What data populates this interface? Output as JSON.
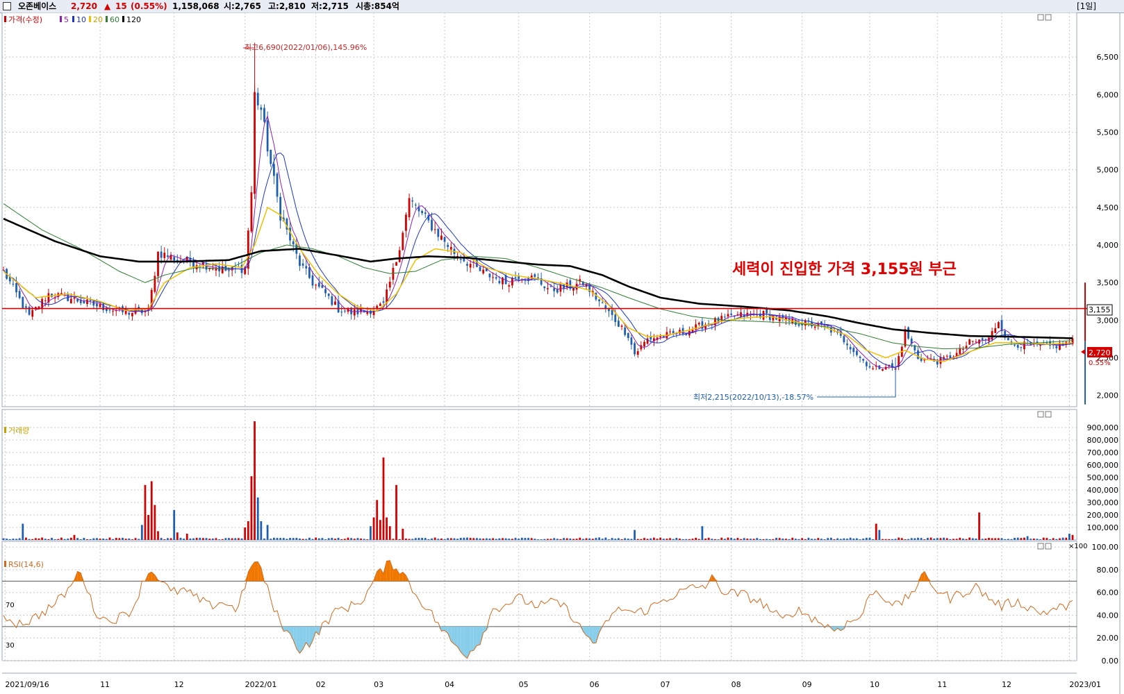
{
  "header": {
    "stock_name": "오존베이스",
    "price": "2,720",
    "change_arrow": "▲",
    "change": "15",
    "change_pct": "(0.55%)",
    "volume": "1,158,068",
    "open": "시:2,765",
    "high": "고:2,810",
    "low": "저:2,715",
    "mktcap": "시총:854억",
    "period": "[1일]"
  },
  "colors": {
    "up": "#d40000",
    "down": "#1e5fb4",
    "ma5": "#8e1fb0",
    "ma10": "#1a35c8",
    "ma20": "#f0c000",
    "ma60": "#2e7d32",
    "ma120": "#000000",
    "hline": "#d40000",
    "rsi": "#d2691e"
  },
  "chart_data": [
    {
      "type": "line",
      "subtype": "candlestick",
      "legend": [
        "가격(수정)",
        "5",
        "10",
        "20",
        "60",
        "120"
      ],
      "title_annotation": "세력이 진입한 가격 3,155원 부근",
      "high_annotation": "최고6,690(2022/01/06),145.96%",
      "low_annotation": "최저2,215(2022/10/13),-18.57%",
      "hline_value": 3155,
      "hline_label": "3,155",
      "last_price_label": "2,720",
      "last_pct_label": "0.55%",
      "y_ticks": [
        2000,
        2500,
        3000,
        3500,
        4000,
        4500,
        5000,
        5500,
        6000,
        6500
      ],
      "y_tick_labels": [
        "2,000",
        "2,500",
        "3,000",
        "3,500",
        "4,000",
        "4,500",
        "5,000",
        "5,500",
        "6,000",
        "6,500"
      ],
      "ylim": [
        1850,
        7000
      ],
      "x_labels": [
        "2021/09/16",
        "11",
        "12",
        "2022/01",
        "02",
        "03",
        "04",
        "05",
        "06",
        "07",
        "08",
        "09",
        "10",
        "11",
        "12",
        "2023/01"
      ],
      "x_label_positions": [
        0.5,
        30,
        53,
        75,
        97,
        115,
        137,
        160,
        182,
        204,
        226,
        248,
        269,
        290,
        310,
        331
      ],
      "close_anchors": [
        [
          0,
          3650
        ],
        [
          8,
          3050
        ],
        [
          14,
          3350
        ],
        [
          20,
          3300
        ],
        [
          30,
          3180
        ],
        [
          38,
          3100
        ],
        [
          45,
          3120
        ],
        [
          48,
          3900
        ],
        [
          55,
          3800
        ],
        [
          62,
          3750
        ],
        [
          70,
          3650
        ],
        [
          75,
          3700
        ],
        [
          77,
          4700
        ],
        [
          78,
          6000
        ],
        [
          80,
          5800
        ],
        [
          82,
          5300
        ],
        [
          86,
          4400
        ],
        [
          92,
          3750
        ],
        [
          96,
          3500
        ],
        [
          100,
          3350
        ],
        [
          104,
          3150
        ],
        [
          108,
          3100
        ],
        [
          113,
          3120
        ],
        [
          118,
          3200
        ],
        [
          122,
          3800
        ],
        [
          126,
          4600
        ],
        [
          130,
          4400
        ],
        [
          134,
          4200
        ],
        [
          140,
          3900
        ],
        [
          148,
          3650
        ],
        [
          156,
          3500
        ],
        [
          160,
          3600
        ],
        [
          165,
          3550
        ],
        [
          170,
          3400
        ],
        [
          176,
          3450
        ],
        [
          180,
          3500
        ],
        [
          186,
          3200
        ],
        [
          190,
          3000
        ],
        [
          194,
          2800
        ],
        [
          196,
          2550
        ],
        [
          200,
          2750
        ],
        [
          206,
          2800
        ],
        [
          212,
          2850
        ],
        [
          218,
          2950
        ],
        [
          222,
          3000
        ],
        [
          228,
          3060
        ],
        [
          236,
          3080
        ],
        [
          244,
          2980
        ],
        [
          250,
          2950
        ],
        [
          256,
          2900
        ],
        [
          262,
          2700
        ],
        [
          266,
          2500
        ],
        [
          270,
          2350
        ],
        [
          274,
          2400
        ],
        [
          277,
          2350
        ],
        [
          280,
          2850
        ],
        [
          284,
          2500
        ],
        [
          290,
          2450
        ],
        [
          296,
          2550
        ],
        [
          300,
          2700
        ],
        [
          306,
          2750
        ],
        [
          309,
          3000
        ],
        [
          312,
          2700
        ],
        [
          320,
          2650
        ],
        [
          326,
          2650
        ],
        [
          332,
          2720
        ]
      ],
      "ma_anchors": {
        "ma20": [
          [
            0,
            3650
          ],
          [
            10,
            3300
          ],
          [
            20,
            3350
          ],
          [
            30,
            3250
          ],
          [
            38,
            3130
          ],
          [
            45,
            3150
          ],
          [
            50,
            3500
          ],
          [
            58,
            3700
          ],
          [
            66,
            3750
          ],
          [
            74,
            3700
          ],
          [
            78,
            4000
          ],
          [
            82,
            4500
          ],
          [
            86,
            4400
          ],
          [
            92,
            3950
          ],
          [
            98,
            3600
          ],
          [
            104,
            3350
          ],
          [
            110,
            3180
          ],
          [
            116,
            3120
          ],
          [
            122,
            3350
          ],
          [
            128,
            3800
          ],
          [
            134,
            3950
          ],
          [
            142,
            3900
          ],
          [
            150,
            3700
          ],
          [
            158,
            3600
          ],
          [
            166,
            3550
          ],
          [
            174,
            3480
          ],
          [
            182,
            3400
          ],
          [
            188,
            3200
          ],
          [
            194,
            2900
          ],
          [
            200,
            2780
          ],
          [
            206,
            2800
          ],
          [
            214,
            2880
          ],
          [
            222,
            2980
          ],
          [
            230,
            3030
          ],
          [
            238,
            3050
          ],
          [
            246,
            2980
          ],
          [
            254,
            2920
          ],
          [
            262,
            2800
          ],
          [
            268,
            2600
          ],
          [
            274,
            2500
          ],
          [
            280,
            2600
          ],
          [
            286,
            2480
          ],
          [
            292,
            2450
          ],
          [
            300,
            2580
          ],
          [
            308,
            2700
          ],
          [
            316,
            2700
          ],
          [
            324,
            2680
          ],
          [
            332,
            2700
          ]
        ],
        "ma60": [
          [
            0,
            4550
          ],
          [
            12,
            4200
          ],
          [
            24,
            3950
          ],
          [
            36,
            3650
          ],
          [
            44,
            3500
          ],
          [
            50,
            3600
          ],
          [
            60,
            3700
          ],
          [
            70,
            3680
          ],
          [
            80,
            3900
          ],
          [
            88,
            4000
          ],
          [
            96,
            3950
          ],
          [
            104,
            3850
          ],
          [
            112,
            3700
          ],
          [
            120,
            3620
          ],
          [
            128,
            3650
          ],
          [
            136,
            3800
          ],
          [
            146,
            3850
          ],
          [
            156,
            3820
          ],
          [
            166,
            3700
          ],
          [
            176,
            3560
          ],
          [
            186,
            3430
          ],
          [
            194,
            3300
          ],
          [
            204,
            3150
          ],
          [
            214,
            3050
          ],
          [
            224,
            3000
          ],
          [
            236,
            2980
          ],
          [
            246,
            2960
          ],
          [
            256,
            2910
          ],
          [
            266,
            2820
          ],
          [
            276,
            2700
          ],
          [
            284,
            2650
          ],
          [
            292,
            2620
          ],
          [
            302,
            2630
          ],
          [
            312,
            2680
          ],
          [
            322,
            2700
          ],
          [
            332,
            2730
          ]
        ],
        "ma120": [
          [
            0,
            4350
          ],
          [
            16,
            4050
          ],
          [
            30,
            3850
          ],
          [
            42,
            3780
          ],
          [
            56,
            3780
          ],
          [
            70,
            3800
          ],
          [
            80,
            3920
          ],
          [
            92,
            3950
          ],
          [
            104,
            3860
          ],
          [
            114,
            3780
          ],
          [
            122,
            3820
          ],
          [
            132,
            3850
          ],
          [
            144,
            3830
          ],
          [
            156,
            3780
          ],
          [
            166,
            3740
          ],
          [
            176,
            3720
          ],
          [
            186,
            3600
          ],
          [
            194,
            3450
          ],
          [
            204,
            3300
          ],
          [
            216,
            3220
          ],
          [
            230,
            3180
          ],
          [
            244,
            3130
          ],
          [
            256,
            3050
          ],
          [
            266,
            2960
          ],
          [
            276,
            2880
          ],
          [
            288,
            2830
          ],
          [
            300,
            2790
          ],
          [
            314,
            2780
          ],
          [
            332,
            2760
          ]
        ]
      }
    },
    {
      "type": "bar",
      "legend": [
        "거래량"
      ],
      "y_ticks": [
        100000,
        200000,
        300000,
        400000,
        500000,
        600000,
        700000,
        800000,
        900000
      ],
      "y_tick_labels": [
        "100,000",
        "200,000",
        "300,000",
        "400,000",
        "500,000",
        "600,000",
        "700,000",
        "800,000",
        "900,000"
      ],
      "unit_label": "×100",
      "ylim": [
        0,
        1000000
      ],
      "spikes": [
        [
          6,
          130000
        ],
        [
          22,
          40000
        ],
        [
          43,
          120000
        ],
        [
          44,
          440000
        ],
        [
          45,
          200000
        ],
        [
          46,
          470000
        ],
        [
          47,
          280000
        ],
        [
          48,
          70000
        ],
        [
          53,
          240000
        ],
        [
          54,
          60000
        ],
        [
          57,
          50000
        ],
        [
          75,
          100000
        ],
        [
          76,
          150000
        ],
        [
          77,
          510000
        ],
        [
          78,
          950000
        ],
        [
          79,
          340000
        ],
        [
          80,
          150000
        ],
        [
          82,
          120000
        ],
        [
          114,
          110000
        ],
        [
          115,
          180000
        ],
        [
          116,
          320000
        ],
        [
          117,
          160000
        ],
        [
          118,
          660000
        ],
        [
          119,
          180000
        ],
        [
          120,
          110000
        ],
        [
          122,
          440000
        ],
        [
          124,
          90000
        ],
        [
          185,
          20000
        ],
        [
          196,
          80000
        ],
        [
          217,
          110000
        ],
        [
          271,
          130000
        ],
        [
          272,
          80000
        ],
        [
          303,
          220000
        ],
        [
          318,
          30000
        ],
        [
          331,
          50000
        ],
        [
          332,
          40000
        ]
      ],
      "base_volume": 12000
    },
    {
      "type": "line",
      "legend": [
        "RSI(14,6)"
      ],
      "y_ticks": [
        0,
        20,
        40,
        60,
        80,
        100
      ],
      "y_tick_labels": [
        "0.00",
        "20.00",
        "40.00",
        "60.00",
        "80.00",
        "100.00"
      ],
      "ref_labels": [
        "70",
        "30"
      ],
      "ref_values": [
        70,
        30
      ],
      "ylim": [
        0,
        105
      ],
      "anchors": [
        [
          0,
          40
        ],
        [
          4,
          33
        ],
        [
          8,
          35
        ],
        [
          12,
          42
        ],
        [
          16,
          50
        ],
        [
          20,
          62
        ],
        [
          24,
          80
        ],
        [
          28,
          45
        ],
        [
          32,
          35
        ],
        [
          36,
          38
        ],
        [
          40,
          45
        ],
        [
          44,
          74
        ],
        [
          46,
          79
        ],
        [
          48,
          74
        ],
        [
          52,
          60
        ],
        [
          56,
          62
        ],
        [
          60,
          55
        ],
        [
          64,
          48
        ],
        [
          68,
          52
        ],
        [
          72,
          45
        ],
        [
          75,
          65
        ],
        [
          77,
          82
        ],
        [
          78,
          90
        ],
        [
          80,
          80
        ],
        [
          84,
          45
        ],
        [
          88,
          25
        ],
        [
          92,
          10
        ],
        [
          96,
          18
        ],
        [
          100,
          34
        ],
        [
          104,
          45
        ],
        [
          108,
          48
        ],
        [
          112,
          55
        ],
        [
          116,
          75
        ],
        [
          120,
          86
        ],
        [
          124,
          78
        ],
        [
          128,
          58
        ],
        [
          132,
          45
        ],
        [
          136,
          28
        ],
        [
          140,
          14
        ],
        [
          144,
          5
        ],
        [
          148,
          18
        ],
        [
          152,
          45
        ],
        [
          156,
          50
        ],
        [
          160,
          55
        ],
        [
          166,
          48
        ],
        [
          172,
          52
        ],
        [
          176,
          42
        ],
        [
          180,
          25
        ],
        [
          184,
          15
        ],
        [
          188,
          38
        ],
        [
          192,
          46
        ],
        [
          196,
          42
        ],
        [
          200,
          45
        ],
        [
          206,
          55
        ],
        [
          210,
          60
        ],
        [
          214,
          64
        ],
        [
          218,
          66
        ],
        [
          220,
          72
        ],
        [
          224,
          60
        ],
        [
          230,
          58
        ],
        [
          236,
          50
        ],
        [
          242,
          35
        ],
        [
          246,
          45
        ],
        [
          250,
          40
        ],
        [
          254,
          33
        ],
        [
          258,
          27
        ],
        [
          262,
          33
        ],
        [
          266,
          38
        ],
        [
          270,
          62
        ],
        [
          274,
          55
        ],
        [
          278,
          48
        ],
        [
          282,
          60
        ],
        [
          286,
          75
        ],
        [
          290,
          62
        ],
        [
          294,
          55
        ],
        [
          298,
          60
        ],
        [
          302,
          65
        ],
        [
          306,
          55
        ],
        [
          310,
          48
        ],
        [
          314,
          52
        ],
        [
          318,
          48
        ],
        [
          322,
          42
        ],
        [
          326,
          45
        ],
        [
          330,
          48
        ],
        [
          332,
          50
        ]
      ]
    }
  ]
}
